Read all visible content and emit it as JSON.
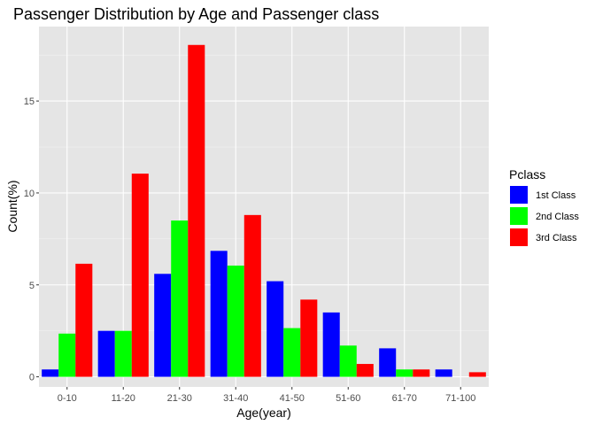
{
  "chart_data": {
    "type": "bar",
    "title": "Passenger Distribution by Age and Passenger class",
    "xlabel": "Age(year)",
    "ylabel": "Count(%)",
    "categories": [
      "0-10",
      "11-20",
      "21-30",
      "31-40",
      "41-50",
      "51-60",
      "61-70",
      "71-100"
    ],
    "series": [
      {
        "name": "1st Class",
        "color": "#0000ff",
        "values": [
          0.4,
          2.5,
          5.6,
          6.85,
          5.2,
          3.5,
          1.55,
          0.4
        ]
      },
      {
        "name": "2nd Class",
        "color": "#00ff00",
        "values": [
          2.35,
          2.5,
          8.5,
          6.05,
          2.65,
          1.7,
          0.4,
          0
        ]
      },
      {
        "name": "3rd Class",
        "color": "#ff0000",
        "values": [
          6.15,
          11.05,
          18.05,
          8.8,
          4.2,
          0.7,
          0.4,
          0.25
        ]
      }
    ],
    "legend_title": "Pclass",
    "legend_position": "right",
    "yticks": [
      0,
      5,
      10,
      15
    ],
    "ylim": [
      -0.55,
      19.05
    ],
    "grid": true,
    "panel_background": "#e5e5e5"
  }
}
